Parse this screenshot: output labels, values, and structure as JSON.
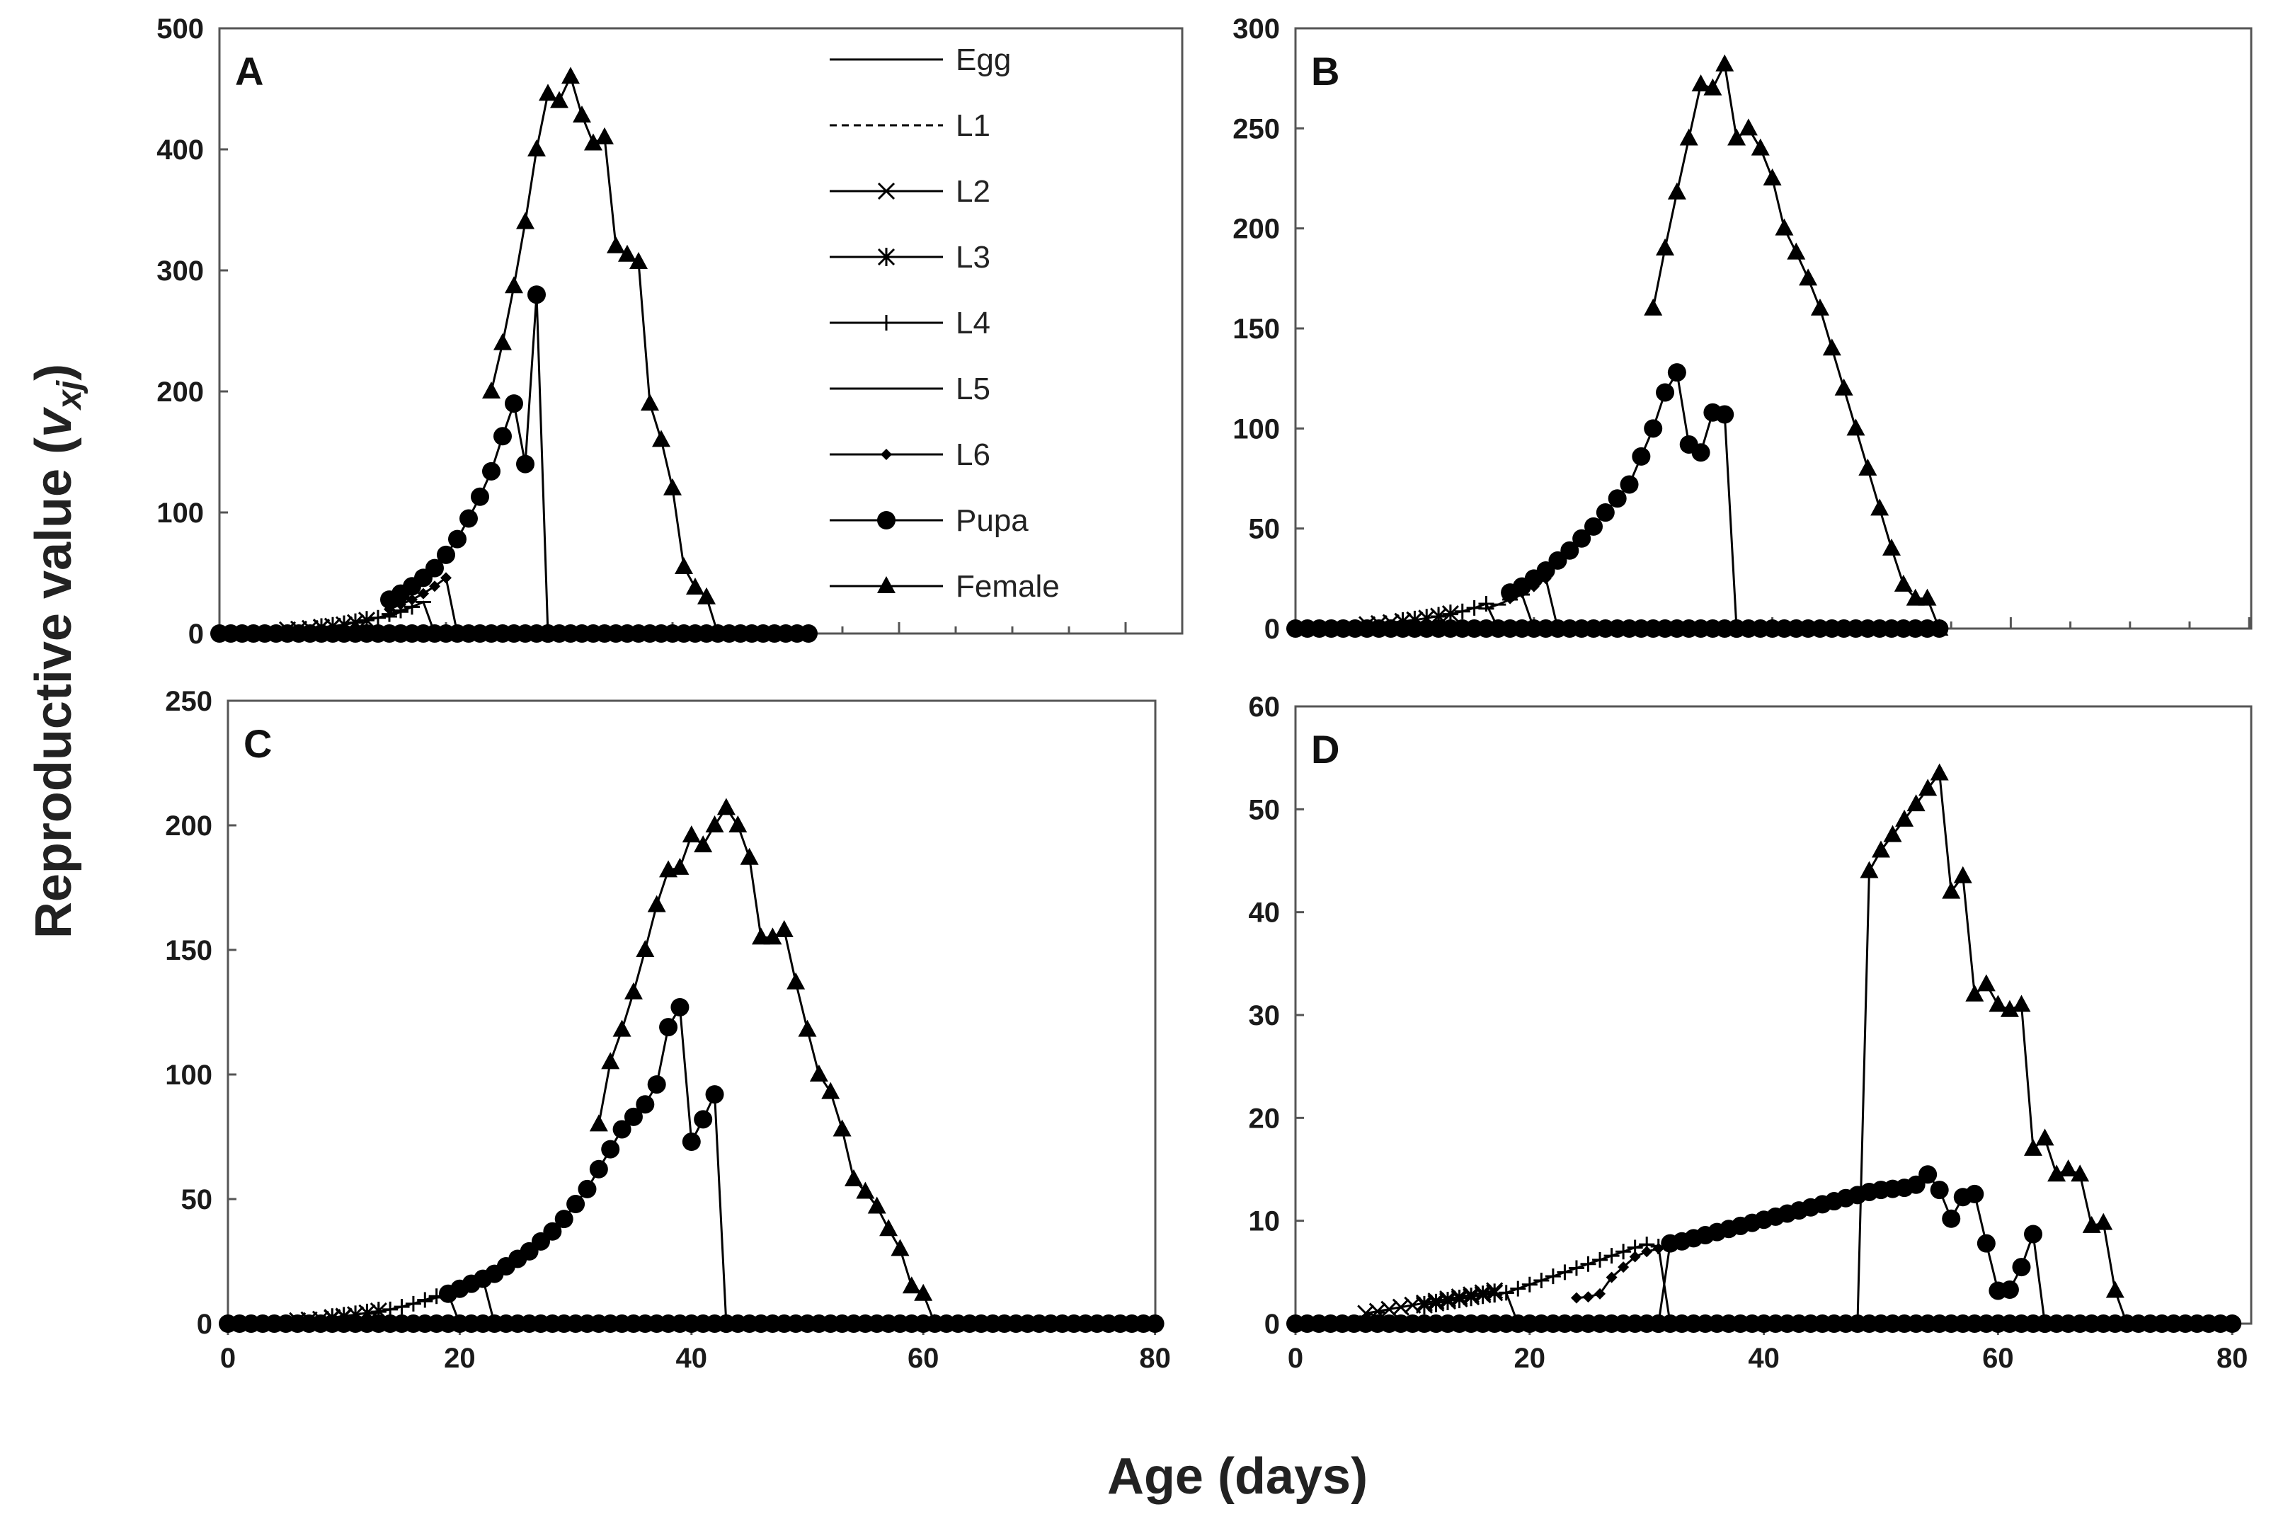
{
  "chart_data": {
    "type": "line",
    "xlabel": "Age (days)",
    "ylabel_main": "Reproductive value (",
    "ylabel_symbol": "v",
    "ylabel_subscript": "xj",
    "ylabel_close": ")",
    "legend": {
      "placement": "top-right of panel A",
      "entries": [
        {
          "name": "Egg",
          "line": "solid",
          "marker": "none"
        },
        {
          "name": "L1",
          "line": "dashed",
          "marker": "none"
        },
        {
          "name": "L2",
          "line": "solid",
          "marker": "x"
        },
        {
          "name": "L3",
          "line": "solid",
          "marker": "asterisk"
        },
        {
          "name": "L4",
          "line": "solid",
          "marker": "plus"
        },
        {
          "name": "L5",
          "line": "solid",
          "marker": "dash"
        },
        {
          "name": "L6",
          "line": "solid",
          "marker": "diamond"
        },
        {
          "name": "Pupa",
          "line": "solid",
          "marker": "circle"
        },
        {
          "name": "Female",
          "line": "solid",
          "marker": "triangle"
        }
      ]
    },
    "panels": [
      {
        "label": "A",
        "xlim": [
          0,
          52
        ],
        "ylim": [
          0,
          500
        ],
        "xticks": [],
        "xtick_labels": [],
        "yticks": [
          0,
          100,
          200,
          300,
          400,
          500
        ],
        "ytick_labels": [
          "0",
          "100",
          "200",
          "300",
          "400",
          "500"
        ],
        "series": [
          {
            "name": "Egg",
            "start": 0,
            "values": [
              0.5,
              0.7,
              1.0,
              1.4,
              2.0
            ]
          },
          {
            "name": "L1",
            "start": 4,
            "values": [
              2,
              2.5,
              3,
              3.5
            ]
          },
          {
            "name": "L2",
            "start": 6,
            "values": [
              3,
              3.6,
              4.3,
              5.2,
              6
            ]
          },
          {
            "name": "L3",
            "start": 9,
            "values": [
              5,
              6,
              7.3,
              9,
              11
            ]
          },
          {
            "name": "L4",
            "start": 12,
            "values": [
              9,
              11,
              13,
              16,
              19,
              22
            ]
          },
          {
            "name": "L5",
            "start": 15,
            "values": [
              14,
              18,
              22,
              26,
              0,
              0
            ]
          },
          {
            "name": "L6",
            "start": 15,
            "values": [
              20,
              24,
              28,
              33,
              39,
              46,
              0,
              0
            ]
          },
          {
            "name": "Pupa",
            "start": 15,
            "values": [
              28,
              33,
              39,
              46,
              54,
              65,
              78,
              95,
              113,
              134,
              163,
              190,
              140,
              280,
              0
            ]
          },
          {
            "name": "Female",
            "start": 24,
            "values": [
              200,
              240,
              287,
              340,
              400,
              446,
              440,
              460,
              428,
              405,
              410,
              320,
              313,
              307,
              190,
              160,
              120,
              55,
              38,
              30,
              0
            ]
          }
        ]
      },
      {
        "label": "B",
        "xlim": [
          0,
          54
        ],
        "ylim": [
          0,
          300
        ],
        "xticks": [],
        "xtick_labels": [],
        "yticks": [
          0,
          50,
          100,
          150,
          200,
          250,
          300
        ],
        "ytick_labels": [
          "0",
          "50",
          "100",
          "150",
          "200",
          "250",
          "300"
        ],
        "series": [
          {
            "name": "Egg",
            "start": 0,
            "values": [
              0.4,
              0.5,
              0.7,
              0.9,
              1.2
            ]
          },
          {
            "name": "L1",
            "start": 4,
            "values": [
              1.2,
              1.5,
              1.8,
              2.2
            ]
          },
          {
            "name": "L2",
            "start": 6,
            "values": [
              2,
              2.5,
              3,
              3.6,
              4.3
            ]
          },
          {
            "name": "L3",
            "start": 9,
            "values": [
              3.6,
              4.3,
              5.2,
              6.2,
              7.4
            ]
          },
          {
            "name": "L4",
            "start": 12,
            "values": [
              6,
              7.2,
              8.6,
              10.3,
              12.4,
              0
            ]
          },
          {
            "name": "L5",
            "start": 16,
            "values": [
              10,
              12,
              14.5,
              17,
              0,
              0
            ]
          },
          {
            "name": "L6",
            "start": 18,
            "values": [
              15,
              18,
              21,
              25,
              0,
              0
            ]
          },
          {
            "name": "Pupa",
            "start": 18,
            "values": [
              18,
              21,
              25,
              29,
              34,
              39,
              45,
              51,
              58,
              65,
              72,
              86,
              100,
              118,
              128,
              92,
              88,
              108,
              107,
              0
            ]
          },
          {
            "name": "Female",
            "start": 30,
            "values": [
              160,
              190,
              218,
              245,
              272,
              270,
              282,
              245,
              250,
              240,
              225,
              200,
              188,
              175,
              160,
              140,
              120,
              100,
              80,
              60,
              40,
              22,
              15,
              15,
              0
            ]
          }
        ]
      },
      {
        "label": "C",
        "xlim": [
          0,
          80
        ],
        "ylim": [
          0,
          250
        ],
        "xticks": [
          0,
          20,
          40,
          60,
          80
        ],
        "xtick_labels": [
          "0",
          "20",
          "40",
          "60",
          "80"
        ],
        "yticks": [
          0,
          50,
          100,
          150,
          200,
          250
        ],
        "ytick_labels": [
          "0",
          "50",
          "100",
          "150",
          "200",
          "250"
        ],
        "series": [
          {
            "name": "Egg",
            "start": 0,
            "values": [
              0.3,
              0.4,
              0.5,
              0.6,
              0.8
            ]
          },
          {
            "name": "L1",
            "start": 4,
            "values": [
              0.8,
              1.0,
              1.2,
              1.5
            ]
          },
          {
            "name": "L2",
            "start": 6,
            "values": [
              1.2,
              1.5,
              1.8,
              2.2,
              2.7
            ]
          },
          {
            "name": "L3",
            "start": 9,
            "values": [
              2.5,
              3,
              3.6,
              4.3,
              5.1
            ]
          },
          {
            "name": "L4",
            "start": 12,
            "values": [
              4,
              4.8,
              5.7,
              6.8,
              8,
              9.5,
              11
            ]
          },
          {
            "name": "L5",
            "start": 17,
            "values": [
              9,
              10.5,
              12,
              0,
              0
            ]
          },
          {
            "name": "L6",
            "start": 19,
            "values": [
              12,
              14,
              16,
              18,
              0,
              0
            ]
          },
          {
            "name": "Pupa",
            "start": 19,
            "values": [
              12,
              14,
              16,
              18,
              20,
              23,
              26,
              29,
              33,
              37,
              42,
              48,
              54,
              62,
              70,
              78,
              83,
              88,
              96,
              119,
              127,
              73,
              82,
              92,
              0
            ]
          },
          {
            "name": "Female",
            "start": 32,
            "values": [
              80,
              105,
              118,
              133,
              150,
              168,
              182,
              183,
              196,
              192,
              200,
              207,
              200,
              187,
              155,
              155,
              158,
              137,
              118,
              100,
              93,
              78,
              58,
              53,
              47,
              38,
              30,
              15,
              12,
              0
            ]
          }
        ]
      },
      {
        "label": "D",
        "xlim": [
          0,
          80
        ],
        "ylim": [
          0,
          60
        ],
        "xticks": [
          0,
          20,
          40,
          60,
          80
        ],
        "xtick_labels": [
          "0",
          "20",
          "40",
          "60",
          "80"
        ],
        "yticks": [
          0,
          10,
          20,
          30,
          40,
          50,
          60
        ],
        "ytick_labels": [
          "0",
          "10",
          "20",
          "30",
          "40",
          "50",
          "60"
        ],
        "series": [
          {
            "name": "Egg",
            "start": 0,
            "values": [
              0.3,
              0.35,
              0.4,
              0.45,
              0.5,
              0.55
            ]
          },
          {
            "name": "L1",
            "start": 5,
            "values": [
              0.6,
              0.8,
              1.0,
              1.2
            ]
          },
          {
            "name": "L2",
            "start": 6,
            "values": [
              1.0,
              1.2,
              1.4,
              1.6,
              1.8,
              2.0,
              2.2,
              2.4,
              2.6,
              2.8,
              3.0,
              3.2
            ]
          },
          {
            "name": "L3",
            "start": 11,
            "values": [
              1.8,
              2.0,
              2.2,
              2.4,
              2.6,
              2.8,
              3.0
            ]
          },
          {
            "name": "L4",
            "start": 17,
            "values": [
              2.8,
              3.0,
              3.4,
              3.8,
              4.2,
              4.6,
              5.0,
              5.4,
              5.8,
              6.2,
              6.6,
              7.0,
              7.4,
              7.7,
              7.5,
              0
            ]
          },
          {
            "name": "L5",
            "start": 18,
            "values": [
              3.0,
              0,
              0
            ]
          },
          {
            "name": "L6",
            "start": 24,
            "values": [
              2.5,
              2.6,
              2.9,
              4.5,
              5.5,
              6.5,
              7.0,
              7.3
            ]
          },
          {
            "name": "Pupa",
            "start": 31,
            "values": [
              0,
              7.8,
              8.0,
              8.3,
              8.6,
              8.9,
              9.2,
              9.5,
              9.8,
              10.1,
              10.4,
              10.7,
              11.0,
              11.3,
              11.6,
              11.9,
              12.2,
              12.5,
              12.8,
              13.0,
              13.1,
              13.2,
              13.5,
              14.5,
              13.0,
              10.2,
              12.3,
              12.6,
              7.8,
              3.2,
              3.3,
              5.5,
              8.7,
              0
            ]
          },
          {
            "name": "Female",
            "start": 48,
            "values": [
              0,
              44,
              46,
              47.5,
              49,
              50.5,
              52,
              53.5,
              42,
              43.5,
              32,
              33,
              31,
              30.5,
              31,
              17,
              18,
              14.5,
              15,
              14.5,
              9.5,
              9.8,
              3.2,
              0
            ]
          }
        ]
      }
    ]
  }
}
